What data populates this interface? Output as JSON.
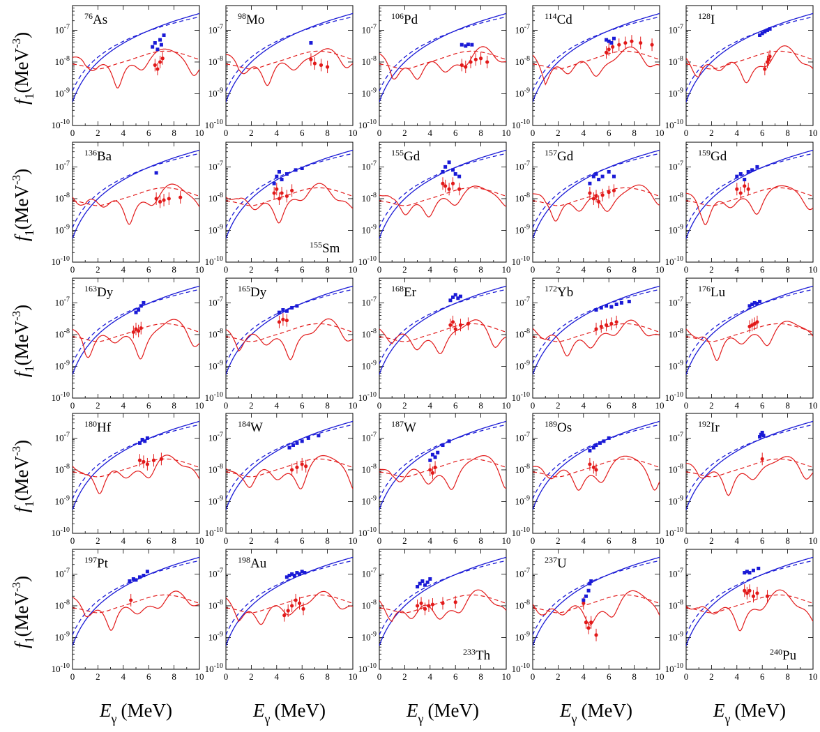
{
  "figure": {
    "y_axis_label": {
      "symbol": "f",
      "sub": "1",
      "unit": "(MeV",
      "exp": "-3",
      "close": ")"
    },
    "x_axis_label": {
      "symbol": "E",
      "sub": "γ",
      "unit": "(MeV)"
    }
  },
  "chart_data": {
    "type": "scatter",
    "rows": 5,
    "cols": 5,
    "x_axis": {
      "range": [
        0,
        10
      ],
      "ticks": [
        "0",
        "2",
        "4",
        "6",
        "8",
        "10"
      ]
    },
    "y_axis": {
      "scale": "log",
      "range": [
        1e-10,
        6e-07
      ],
      "ticks": [
        {
          "base": "10",
          "exp": "-10",
          "value": 1e-10
        },
        {
          "base": "10",
          "exp": "-9",
          "value": 1e-09
        },
        {
          "base": "10",
          "exp": "-8",
          "value": 1e-08
        },
        {
          "base": "10",
          "exp": "-7",
          "value": 1e-07
        }
      ]
    },
    "colors": {
      "blue": "#1a1ad6",
      "red": "#e21a1a"
    },
    "panels": [
      {
        "mass": "76",
        "el": "As",
        "label_pos": "top",
        "blue_points": [
          [
            6.3,
            3e-08
          ],
          [
            6.5,
            4e-08
          ],
          [
            6.7,
            2.5e-08
          ],
          [
            6.9,
            5e-08
          ],
          [
            7.0,
            3.5e-08
          ],
          [
            7.2,
            7e-08
          ]
        ],
        "red_points": [
          [
            6.5,
            8e-09
          ],
          [
            6.7,
            6e-09
          ],
          [
            6.9,
            1e-08
          ],
          [
            7.1,
            1.3e-08
          ]
        ]
      },
      {
        "mass": "98",
        "el": "Mo",
        "label_pos": "top",
        "blue_points": [
          [
            6.7,
            4e-08
          ]
        ],
        "red_points": [
          [
            6.7,
            1.2e-08
          ],
          [
            7.0,
            9e-09
          ],
          [
            7.5,
            8e-09
          ],
          [
            8.0,
            7e-09
          ]
        ]
      },
      {
        "mass": "106",
        "el": "Pd",
        "label_pos": "top",
        "blue_points": [
          [
            6.5,
            3.5e-08
          ],
          [
            6.8,
            3.2e-08
          ],
          [
            7.0,
            3.6e-08
          ],
          [
            7.3,
            3.5e-08
          ]
        ],
        "red_points": [
          [
            6.5,
            8e-09
          ],
          [
            6.8,
            7e-09
          ],
          [
            7.2,
            1e-08
          ],
          [
            7.6,
            1.2e-08
          ],
          [
            8.0,
            1.3e-08
          ],
          [
            8.5,
            1e-08
          ]
        ]
      },
      {
        "mass": "114",
        "el": "Cd",
        "label_pos": "top",
        "blue_points": [
          [
            5.8,
            5e-08
          ],
          [
            6.0,
            4.5e-08
          ],
          [
            6.2,
            4e-08
          ],
          [
            6.4,
            5.5e-08
          ]
        ],
        "red_points": [
          [
            5.8,
            2e-08
          ],
          [
            6.0,
            2.5e-08
          ],
          [
            6.3,
            3e-08
          ],
          [
            6.8,
            3.5e-08
          ],
          [
            7.3,
            4e-08
          ],
          [
            7.8,
            4.5e-08
          ],
          [
            8.5,
            4e-08
          ],
          [
            9.4,
            3.5e-08
          ]
        ]
      },
      {
        "mass": "128",
        "el": "I",
        "label_pos": "top",
        "blue_points": [
          [
            5.8,
            7e-08
          ],
          [
            6.0,
            8e-08
          ],
          [
            6.2,
            9e-08
          ],
          [
            6.4,
            1e-07
          ],
          [
            6.6,
            1.1e-07
          ]
        ],
        "red_points": [
          [
            6.2,
            6e-09
          ],
          [
            6.4,
            1e-08
          ],
          [
            6.5,
            1.2e-08
          ],
          [
            6.6,
            1.5e-08
          ]
        ]
      },
      {
        "mass": "136",
        "el": "Ba",
        "label_pos": "top",
        "blue_points": [
          [
            6.6,
            6.5e-08
          ]
        ],
        "red_points": [
          [
            6.6,
            1e-08
          ],
          [
            6.9,
            8e-09
          ],
          [
            7.2,
            9e-09
          ],
          [
            7.6,
            1e-08
          ],
          [
            8.5,
            1.1e-08
          ]
        ]
      },
      {
        "mass": "155",
        "el": "Sm",
        "label_pos": "bottom",
        "blue_points": [
          [
            3.8,
            3e-08
          ],
          [
            4.0,
            5e-08
          ],
          [
            4.2,
            7e-08
          ],
          [
            4.4,
            4e-08
          ],
          [
            4.8,
            6e-08
          ],
          [
            5.5,
            8e-08
          ],
          [
            6.0,
            9e-08
          ]
        ],
        "red_points": [
          [
            3.8,
            1.5e-08
          ],
          [
            4.0,
            2e-08
          ],
          [
            4.2,
            1e-08
          ],
          [
            4.4,
            1.5e-08
          ],
          [
            4.8,
            1.2e-08
          ],
          [
            5.2,
            1.8e-08
          ]
        ]
      },
      {
        "mass": "155",
        "el": "Gd",
        "label_pos": "top",
        "blue_points": [
          [
            5.0,
            7e-08
          ],
          [
            5.2,
            1e-07
          ],
          [
            5.5,
            1.4e-07
          ],
          [
            5.8,
            8e-08
          ],
          [
            6.0,
            6e-08
          ],
          [
            6.3,
            5e-08
          ]
        ],
        "red_points": [
          [
            5.0,
            3e-08
          ],
          [
            5.2,
            2.5e-08
          ],
          [
            5.5,
            2e-08
          ],
          [
            5.8,
            3e-08
          ],
          [
            6.3,
            2e-08
          ]
        ]
      },
      {
        "mass": "157",
        "el": "Gd",
        "label_pos": "top",
        "blue_points": [
          [
            4.5,
            3e-08
          ],
          [
            4.8,
            5e-08
          ],
          [
            5.0,
            6e-08
          ],
          [
            5.2,
            4e-08
          ],
          [
            5.5,
            5e-08
          ],
          [
            6.0,
            7e-08
          ],
          [
            6.4,
            5e-08
          ]
        ],
        "red_points": [
          [
            4.5,
            1.5e-08
          ],
          [
            4.8,
            1e-08
          ],
          [
            5.0,
            1.2e-08
          ],
          [
            5.2,
            8e-09
          ],
          [
            5.5,
            1.3e-08
          ],
          [
            6.0,
            1.6e-08
          ],
          [
            6.4,
            1.8e-08
          ]
        ]
      },
      {
        "mass": "159",
        "el": "Gd",
        "label_pos": "top",
        "blue_points": [
          [
            4.0,
            5e-08
          ],
          [
            4.3,
            6e-08
          ],
          [
            4.6,
            4e-08
          ],
          [
            4.9,
            7e-08
          ],
          [
            5.2,
            8e-08
          ],
          [
            5.6,
            1e-07
          ]
        ],
        "red_points": [
          [
            4.0,
            2e-08
          ],
          [
            4.3,
            1.5e-08
          ],
          [
            4.6,
            2.5e-08
          ],
          [
            4.9,
            2e-08
          ]
        ]
      },
      {
        "mass": "163",
        "el": "Dy",
        "label_pos": "top",
        "blue_points": [
          [
            5.0,
            5e-08
          ],
          [
            5.2,
            6e-08
          ],
          [
            5.4,
            8e-08
          ],
          [
            5.6,
            1e-07
          ]
        ],
        "red_points": [
          [
            4.8,
            1.2e-08
          ],
          [
            5.0,
            1.5e-08
          ],
          [
            5.2,
            1.3e-08
          ],
          [
            5.4,
            1.6e-08
          ]
        ]
      },
      {
        "mass": "165",
        "el": "Dy",
        "label_pos": "top",
        "blue_points": [
          [
            4.2,
            5e-08
          ],
          [
            4.5,
            6e-08
          ],
          [
            4.8,
            5.5e-08
          ],
          [
            5.2,
            7e-08
          ],
          [
            5.6,
            8e-08
          ]
        ],
        "red_points": [
          [
            4.2,
            2.5e-08
          ],
          [
            4.5,
            3e-08
          ],
          [
            4.8,
            2.8e-08
          ]
        ]
      },
      {
        "mass": "168",
        "el": "Er",
        "label_pos": "top",
        "blue_points": [
          [
            5.6,
            1.2e-07
          ],
          [
            5.8,
            1.5e-07
          ],
          [
            6.0,
            1.8e-07
          ],
          [
            6.2,
            1.4e-07
          ],
          [
            6.4,
            1.6e-07
          ]
        ],
        "red_points": [
          [
            5.6,
            2e-08
          ],
          [
            5.8,
            2.5e-08
          ],
          [
            6.0,
            1.5e-08
          ],
          [
            6.4,
            2e-08
          ],
          [
            7.0,
            2.2e-08
          ]
        ]
      },
      {
        "mass": "172",
        "el": "Yb",
        "label_pos": "top",
        "blue_points": [
          [
            5.0,
            6e-08
          ],
          [
            5.4,
            7e-08
          ],
          [
            5.8,
            8e-08
          ],
          [
            6.2,
            7.5e-08
          ],
          [
            6.6,
            9e-08
          ],
          [
            7.0,
            1e-07
          ],
          [
            7.6,
            1.1e-07
          ]
        ],
        "red_points": [
          [
            5.0,
            1.5e-08
          ],
          [
            5.4,
            1.8e-08
          ],
          [
            5.8,
            2e-08
          ],
          [
            6.2,
            2.2e-08
          ],
          [
            6.6,
            2.5e-08
          ]
        ]
      },
      {
        "mass": "176",
        "el": "Lu",
        "label_pos": "top",
        "blue_points": [
          [
            5.0,
            8e-08
          ],
          [
            5.2,
            9e-08
          ],
          [
            5.4,
            1e-07
          ],
          [
            5.6,
            9.5e-08
          ],
          [
            5.8,
            1.1e-07
          ]
        ],
        "red_points": [
          [
            5.0,
            1.8e-08
          ],
          [
            5.2,
            2e-08
          ],
          [
            5.4,
            2.2e-08
          ],
          [
            5.6,
            2.5e-08
          ]
        ]
      },
      {
        "mass": "180",
        "el": "Hf",
        "label_pos": "top",
        "blue_points": [
          [
            5.3,
            7e-08
          ],
          [
            5.5,
            9e-08
          ],
          [
            5.7,
            8e-08
          ],
          [
            5.9,
            1e-07
          ]
        ],
        "red_points": [
          [
            5.3,
            2e-08
          ],
          [
            5.6,
            1.8e-08
          ],
          [
            5.9,
            1.5e-08
          ],
          [
            6.4,
            2e-08
          ],
          [
            7.0,
            2.2e-08
          ]
        ]
      },
      {
        "mass": "184",
        "el": "W",
        "label_pos": "top",
        "blue_points": [
          [
            5.0,
            5e-08
          ],
          [
            5.3,
            6e-08
          ],
          [
            5.6,
            7e-08
          ],
          [
            6.0,
            8e-08
          ],
          [
            6.5,
            1e-07
          ],
          [
            7.3,
            1.2e-07
          ]
        ],
        "red_points": [
          [
            5.2,
            1e-08
          ],
          [
            5.6,
            1.2e-08
          ],
          [
            6.0,
            1.5e-08
          ],
          [
            6.3,
            1.3e-08
          ]
        ]
      },
      {
        "mass": "187",
        "el": "W",
        "label_pos": "top",
        "blue_points": [
          [
            4.0,
            2e-08
          ],
          [
            4.2,
            3e-08
          ],
          [
            4.4,
            2.5e-08
          ],
          [
            4.6,
            3.5e-08
          ],
          [
            5.0,
            6e-08
          ],
          [
            5.5,
            8e-08
          ]
        ],
        "red_points": [
          [
            4.0,
            1e-08
          ],
          [
            4.2,
            8e-09
          ],
          [
            4.4,
            1.2e-08
          ]
        ]
      },
      {
        "mass": "189",
        "el": "Os",
        "label_pos": "top",
        "blue_points": [
          [
            4.5,
            4e-08
          ],
          [
            4.8,
            5e-08
          ],
          [
            5.0,
            6e-08
          ],
          [
            5.3,
            7e-08
          ],
          [
            5.6,
            8e-08
          ],
          [
            6.0,
            1e-07
          ]
        ],
        "red_points": [
          [
            4.5,
            1.5e-08
          ],
          [
            4.8,
            1.2e-08
          ],
          [
            5.0,
            1e-08
          ]
        ]
      },
      {
        "mass": "192",
        "el": "Ir",
        "label_pos": "top",
        "blue_points": [
          [
            5.8,
            1.1e-07
          ],
          [
            5.9,
            1.3e-07
          ],
          [
            6.0,
            1.5e-07
          ],
          [
            6.1,
            1.2e-07
          ]
        ],
        "red_points": [
          [
            6.0,
            2.2e-08
          ]
        ]
      },
      {
        "mass": "197",
        "el": "Pt",
        "label_pos": "top",
        "blue_points": [
          [
            4.5,
            6e-08
          ],
          [
            4.8,
            7e-08
          ],
          [
            5.0,
            6.5e-08
          ],
          [
            5.3,
            8e-08
          ],
          [
            5.6,
            9e-08
          ],
          [
            5.9,
            1.2e-07
          ]
        ],
        "red_points": [
          [
            4.6,
            1.5e-08
          ]
        ]
      },
      {
        "mass": "198",
        "el": "Au",
        "label_pos": "top",
        "blue_points": [
          [
            4.8,
            8e-08
          ],
          [
            5.0,
            9e-08
          ],
          [
            5.2,
            1e-07
          ],
          [
            5.4,
            9e-08
          ],
          [
            5.6,
            1.1e-07
          ],
          [
            5.8,
            1e-07
          ],
          [
            6.0,
            1.2e-07
          ],
          [
            6.2,
            1.1e-07
          ]
        ],
        "red_points": [
          [
            4.6,
            5e-09
          ],
          [
            4.9,
            7e-09
          ],
          [
            5.2,
            1e-08
          ],
          [
            5.5,
            1.5e-08
          ],
          [
            5.8,
            1.2e-08
          ],
          [
            6.1,
            8e-09
          ]
        ]
      },
      {
        "mass": "233",
        "el": "Th",
        "label_pos": "bottom",
        "blue_points": [
          [
            3.0,
            4e-08
          ],
          [
            3.2,
            5e-08
          ],
          [
            3.4,
            6e-08
          ],
          [
            3.6,
            4.5e-08
          ],
          [
            3.8,
            5.5e-08
          ],
          [
            4.0,
            7e-08
          ]
        ],
        "red_points": [
          [
            3.0,
            1e-08
          ],
          [
            3.3,
            1.2e-08
          ],
          [
            3.6,
            8e-09
          ],
          [
            3.9,
            1e-08
          ],
          [
            4.2,
            1.1e-08
          ],
          [
            5.0,
            1.2e-08
          ],
          [
            6.0,
            1.3e-08
          ]
        ]
      },
      {
        "mass": "237",
        "el": "U",
        "label_pos": "top",
        "blue_points": [
          [
            4.0,
            1.5e-08
          ],
          [
            4.2,
            2e-08
          ],
          [
            4.4,
            3e-08
          ],
          [
            4.5,
            5e-08
          ],
          [
            4.6,
            6e-08
          ]
        ],
        "red_points": [
          [
            4.0,
            1.2e-08
          ],
          [
            4.2,
            3e-09
          ],
          [
            4.4,
            2e-09
          ],
          [
            4.6,
            3e-09
          ],
          [
            5.0,
            1.2e-09
          ]
        ]
      },
      {
        "mass": "240",
        "el": "Pu",
        "label_pos": "bottom",
        "blue_points": [
          [
            4.6,
            1.1e-07
          ],
          [
            4.8,
            1.2e-07
          ],
          [
            5.0,
            1.1e-07
          ],
          [
            5.3,
            1.3e-07
          ],
          [
            5.7,
            1.5e-07
          ]
        ],
        "red_points": [
          [
            4.6,
            3e-08
          ],
          [
            4.8,
            2.5e-08
          ],
          [
            5.0,
            3e-08
          ],
          [
            5.3,
            2e-08
          ],
          [
            5.6,
            2.5e-08
          ],
          [
            6.4,
            2e-08
          ]
        ]
      }
    ]
  }
}
